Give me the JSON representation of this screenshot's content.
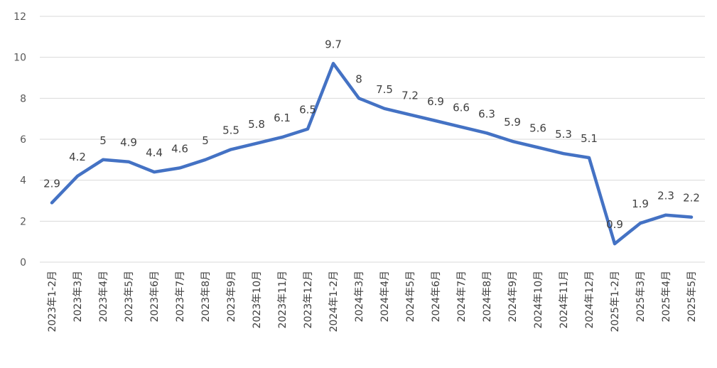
{
  "chart_data": {
    "type": "line",
    "title": "",
    "xlabel": "",
    "ylabel": "",
    "ylim": [
      0,
      12
    ],
    "yticks": [
      0,
      2,
      4,
      6,
      8,
      10,
      12
    ],
    "grid": true,
    "legend": "none",
    "categories": [
      "2023年1-2月",
      "2023年3月",
      "2023年4月",
      "2023年5月",
      "2023年6月",
      "2023年7月",
      "2023年8月",
      "2023年9月",
      "2023年10月",
      "2023年11月",
      "2023年12月",
      "2024年1-2月",
      "2024年3月",
      "2024年4月",
      "2024年5月",
      "2024年6月",
      "2024年7月",
      "2024年8月",
      "2024年9月",
      "2024年10月",
      "2024年11月",
      "2024年12月",
      "2025年1-2月",
      "2025年3月",
      "2025年4月",
      "2025年5月"
    ],
    "series": [
      {
        "values": [
          2.9,
          4.2,
          5,
          4.9,
          4.4,
          4.6,
          5,
          5.5,
          5.8,
          6.1,
          6.5,
          9.7,
          8,
          7.5,
          7.2,
          6.9,
          6.6,
          6.3,
          5.9,
          5.6,
          5.3,
          5.1,
          0.9,
          1.9,
          2.3,
          2.2
        ],
        "color": "#4472c4",
        "data_labels": true
      }
    ]
  }
}
